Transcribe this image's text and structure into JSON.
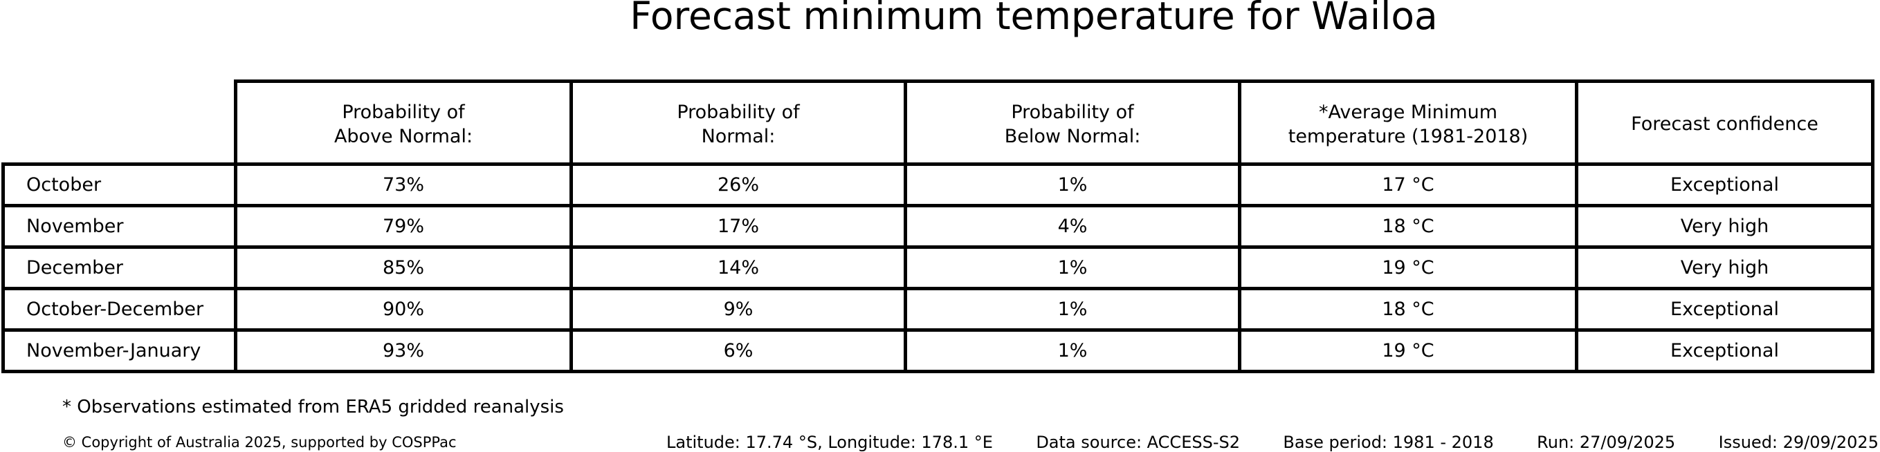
{
  "title": "Forecast minimum temperature for Wailoa",
  "table": {
    "headers": [
      "Probability of\nAbove Normal:",
      "Probability of\nNormal:",
      "Probability of\nBelow Normal:",
      "*Average Minimum\ntemperature (1981-2018)",
      "Forecast confidence"
    ]
  },
  "chart_data": {
    "type": "table",
    "title": "Forecast minimum temperature for Wailoa",
    "columns": [
      "",
      "Probability of Above Normal:",
      "Probability of Normal:",
      "Probability of Below Normal:",
      "*Average Minimum temperature (1981-2018)",
      "Forecast confidence"
    ],
    "rows": [
      [
        "October",
        "73%",
        "26%",
        "1%",
        "17 °C",
        "Exceptional"
      ],
      [
        "November",
        "79%",
        "17%",
        "4%",
        "18 °C",
        "Very high"
      ],
      [
        "December",
        "85%",
        "14%",
        "1%",
        "19 °C",
        "Very high"
      ],
      [
        "October-December",
        "90%",
        "9%",
        "1%",
        "18 °C",
        "Exceptional"
      ],
      [
        "November-January",
        "93%",
        "6%",
        "1%",
        "19 °C",
        "Exceptional"
      ]
    ]
  },
  "footnote": "* Observations estimated from ERA5 gridded reanalysis",
  "footer": {
    "copyright": "© Copyright of Australia 2025, supported by COSPPac",
    "location": "Latitude: 17.74 °S, Longitude: 178.1 °E",
    "data_source": "Data source: ACCESS-S2",
    "base_period": "Base period: 1981 - 2018",
    "run": "Run: 27/09/2025",
    "issued": "Issued: 29/09/2025"
  }
}
